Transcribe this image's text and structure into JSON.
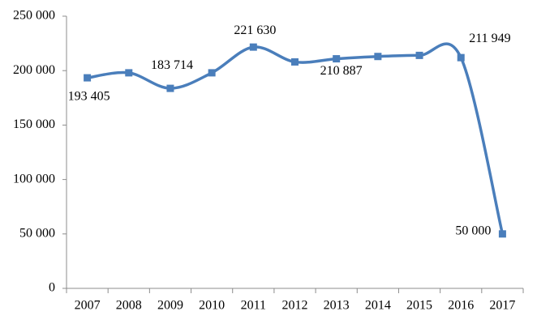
{
  "chart_data": {
    "type": "line",
    "categories": [
      "2007",
      "2008",
      "2009",
      "2010",
      "2011",
      "2012",
      "2013",
      "2014",
      "2015",
      "2016",
      "2017"
    ],
    "values": [
      193405,
      198000,
      183714,
      198000,
      221630,
      208000,
      210887,
      213000,
      214000,
      211949,
      50000
    ],
    "value_labels": [
      "193 405",
      null,
      "183 714",
      null,
      "221 630",
      null,
      "210 887",
      null,
      null,
      "211 949",
      "50 000"
    ],
    "color": "#4a7ebb",
    "ylim": [
      0,
      250000
    ],
    "yticks": [
      0,
      {
        "value": 50000,
        "label": "50 000"
      },
      {
        "value": 100000,
        "label": "100 000"
      },
      {
        "value": 150000,
        "label": "150 000"
      },
      {
        "value": 200000,
        "label": "200 000"
      },
      {
        "value": 250000,
        "label": "250 000"
      }
    ],
    "grid": false
  }
}
